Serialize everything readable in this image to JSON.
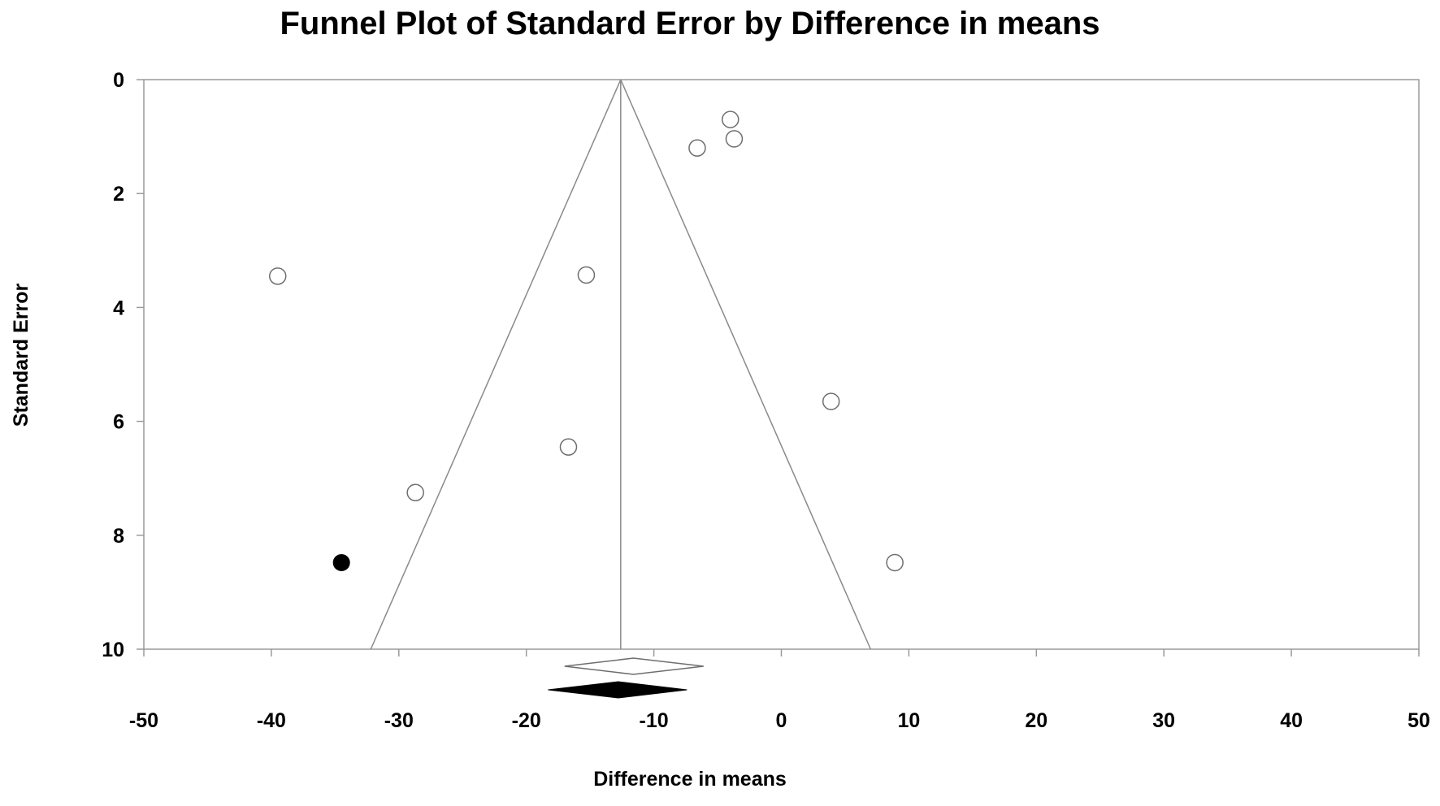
{
  "chart_data": {
    "type": "scatter",
    "title": "Funnel Plot of Standard Error by Difference in means",
    "xlabel": "Difference in means",
    "ylabel": "Standard Error",
    "xlim": [
      -50,
      50
    ],
    "ylim": [
      0,
      10
    ],
    "y_axis_inverted": true,
    "x_ticks": [
      "-50",
      "-40",
      "-30",
      "-20",
      "-10",
      "0",
      "10",
      "20",
      "30",
      "40",
      "50"
    ],
    "x_tick_values": [
      -50,
      -40,
      -30,
      -20,
      -10,
      0,
      10,
      20,
      30,
      40,
      50
    ],
    "y_ticks": [
      "0",
      "2",
      "4",
      "6",
      "8",
      "10"
    ],
    "y_tick_values": [
      0,
      2,
      4,
      6,
      8,
      10
    ],
    "grid": false,
    "funnel": {
      "center": -12.6,
      "se_max": 10,
      "lower_at_max": -32.2,
      "upper_at_max": 7.0
    },
    "series": [
      {
        "marker": "open-circle",
        "points": [
          {
            "x": -39.5,
            "y": 3.45
          },
          {
            "x": -28.7,
            "y": 7.25
          },
          {
            "x": -15.3,
            "y": 3.43
          },
          {
            "x": -16.7,
            "y": 6.45
          },
          {
            "x": -6.6,
            "y": 1.2
          },
          {
            "x": -4.0,
            "y": 0.7
          },
          {
            "x": -3.7,
            "y": 1.04
          },
          {
            "x": 3.9,
            "y": 5.65
          },
          {
            "x": 8.9,
            "y": 8.48
          }
        ]
      },
      {
        "marker": "filled-circle",
        "points": [
          {
            "x": -34.5,
            "y": 8.48
          }
        ]
      }
    ],
    "summary_diamonds": [
      {
        "style": "open",
        "center": -11.6,
        "lower": -17.0,
        "upper": -6.1
      },
      {
        "style": "filled",
        "center": -12.8,
        "lower": -18.3,
        "upper": -7.4
      }
    ]
  },
  "colors": {
    "axis": "#9a9a9a",
    "funnel": "#8a8a8a",
    "open_marker_stroke": "#6e6e6e",
    "filled_marker": "#000000",
    "text": "#000000"
  }
}
